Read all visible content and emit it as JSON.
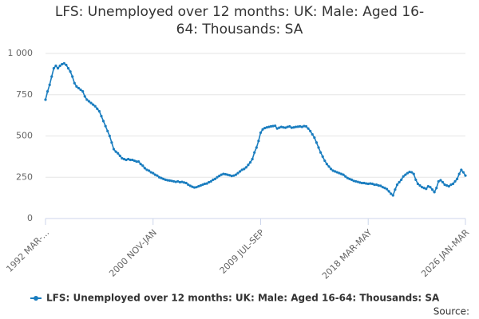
{
  "chart_data": {
    "type": "line",
    "title": "LFS: Unemployed over 12 months: UK: Male: Aged 16-64: Thousands: SA",
    "source": "Source:",
    "categories": [
      "1992 MAR-...",
      null,
      null,
      null,
      null,
      null,
      null,
      null,
      null,
      null,
      null,
      null,
      null,
      null,
      null,
      null,
      null,
      null,
      null,
      null,
      null,
      null,
      null,
      null,
      null,
      null,
      null,
      null,
      null,
      null,
      null,
      null,
      null,
      null,
      null,
      null,
      null,
      null,
      null,
      null,
      null,
      null,
      null,
      null,
      null,
      null,
      null,
      null,
      null,
      null,
      null,
      null,
      "2000 NOV-JAN",
      null,
      null,
      null,
      null,
      null,
      null,
      null,
      null,
      null,
      null,
      null,
      null,
      null,
      null,
      null,
      null,
      null,
      null,
      null,
      null,
      null,
      null,
      null,
      null,
      null,
      null,
      null,
      null,
      null,
      null,
      null,
      null,
      null,
      null,
      null,
      null,
      null,
      null,
      null,
      null,
      null,
      null,
      null,
      null,
      null,
      null,
      null,
      null,
      null,
      null,
      null,
      "2009 JUL-SEP",
      null,
      null,
      null,
      null,
      null,
      null,
      null,
      null,
      null,
      null,
      null,
      null,
      null,
      null,
      null,
      null,
      null,
      null,
      null,
      null,
      null,
      null,
      null,
      null,
      null,
      null,
      null,
      null,
      null,
      null,
      null,
      null,
      null,
      null,
      null,
      null,
      null,
      null,
      null,
      null,
      null,
      null,
      null,
      null,
      null,
      null,
      null,
      null,
      null,
      null,
      null,
      "2018 MAR-MAY",
      null,
      null,
      null,
      null,
      null,
      null,
      null,
      null,
      null,
      null,
      null,
      null,
      null,
      null,
      null,
      null,
      null,
      null,
      null,
      null,
      null,
      null,
      null,
      null,
      null,
      null,
      null,
      null,
      null,
      null,
      null,
      null,
      null,
      null,
      null,
      null,
      null,
      null,
      null,
      null,
      null,
      null,
      null,
      null,
      null,
      null,
      "2026 JAN-MAR"
    ],
    "series": [
      {
        "name": "LFS: Unemployed over 12 months: UK: Male: Aged 16-64: Thousands: SA",
        "color": "#1a7dbf",
        "values": [
          720,
          770,
          810,
          860,
          910,
          925,
          910,
          925,
          935,
          940,
          930,
          910,
          890,
          860,
          820,
          800,
          790,
          780,
          770,
          740,
          720,
          710,
          700,
          690,
          680,
          665,
          650,
          620,
          590,
          560,
          530,
          500,
          460,
          420,
          405,
          395,
          380,
          365,
          360,
          355,
          360,
          355,
          355,
          350,
          345,
          345,
          330,
          320,
          305,
          295,
          290,
          280,
          275,
          265,
          260,
          250,
          245,
          240,
          235,
          232,
          230,
          228,
          225,
          222,
          225,
          220,
          222,
          218,
          215,
          205,
          198,
          192,
          188,
          190,
          195,
          200,
          205,
          210,
          212,
          220,
          225,
          235,
          240,
          250,
          258,
          265,
          270,
          268,
          265,
          262,
          258,
          260,
          265,
          275,
          285,
          295,
          300,
          310,
          325,
          340,
          360,
          400,
          430,
          470,
          520,
          540,
          548,
          552,
          555,
          558,
          560,
          562,
          545,
          550,
          555,
          552,
          550,
          555,
          558,
          550,
          552,
          555,
          556,
          558,
          555,
          560,
          558,
          545,
          530,
          510,
          490,
          460,
          430,
          400,
          375,
          350,
          330,
          315,
          300,
          290,
          285,
          280,
          275,
          270,
          265,
          255,
          245,
          240,
          235,
          228,
          225,
          222,
          218,
          215,
          215,
          212,
          210,
          212,
          210,
          205,
          205,
          200,
          198,
          190,
          185,
          178,
          165,
          150,
          140,
          175,
          205,
          220,
          235,
          255,
          265,
          275,
          282,
          280,
          270,
          235,
          210,
          200,
          190,
          185,
          180,
          195,
          190,
          175,
          160,
          185,
          225,
          232,
          220,
          205,
          200,
          195,
          205,
          210,
          225,
          240,
          270,
          295,
          280,
          260
        ]
      }
    ],
    "ylim": [
      0,
      1000
    ],
    "yticks": [
      0,
      250,
      500,
      750,
      {
        "value": 1000,
        "label": "1 000"
      }
    ],
    "grid": true
  }
}
